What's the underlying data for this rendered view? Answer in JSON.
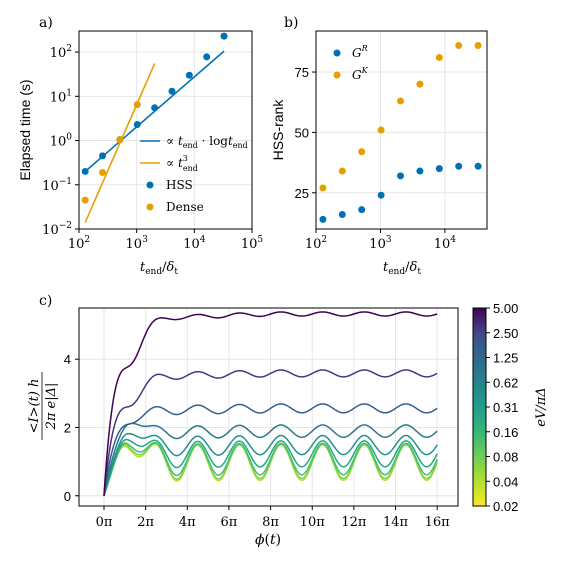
{
  "chart_data": [
    {
      "id": "a",
      "panel_label": "a)",
      "type": "scatter",
      "ylabel": "Elapsed time (s)",
      "xlabel": "t_end/δ_t",
      "x_scale": "log",
      "y_scale": "log",
      "xlim": [
        100,
        100000
      ],
      "ylim": [
        0.01,
        300
      ],
      "x_ticks": [
        {
          "v": 100,
          "b": "10",
          "e": "2"
        },
        {
          "v": 1000,
          "b": "10",
          "e": "3"
        },
        {
          "v": 10000,
          "b": "10",
          "e": "4"
        },
        {
          "v": 100000,
          "b": "10",
          "e": "5"
        }
      ],
      "y_ticks": [
        {
          "v": 0.01,
          "b": "10",
          "e": "−2"
        },
        {
          "v": 0.1,
          "b": "10",
          "e": "−1"
        },
        {
          "v": 1,
          "b": "10",
          "e": "0"
        },
        {
          "v": 10,
          "b": "10",
          "e": "1"
        },
        {
          "v": 100,
          "b": "10",
          "e": "2"
        }
      ],
      "legend_position": "bottom-right",
      "series": [
        {
          "name": "∝ t_end · log t_end",
          "kind": "line",
          "color": "#0072b2",
          "x": [
            128,
            32768
          ],
          "y": [
            0.2,
            105
          ]
        },
        {
          "name": "∝ t_end³",
          "kind": "line",
          "color": "#e69f00",
          "x": [
            128,
            2048
          ],
          "y": [
            0.014,
            55
          ]
        },
        {
          "name": "HSS",
          "kind": "scatter",
          "color": "#0072b2",
          "x": [
            128,
            256,
            512,
            1024,
            2048,
            4096,
            8192,
            16384,
            32768
          ],
          "y": [
            0.2,
            0.45,
            1.05,
            2.3,
            5.5,
            13,
            30,
            78,
            230
          ]
        },
        {
          "name": "Dense",
          "kind": "scatter",
          "color": "#e69f00",
          "x": [
            128,
            256,
            512,
            1024
          ],
          "y": [
            0.045,
            0.19,
            1.05,
            6.5
          ]
        }
      ]
    },
    {
      "id": "b",
      "panel_label": "b)",
      "type": "scatter",
      "ylabel": "HSS-rank",
      "xlabel": "t_end/δ_t",
      "x_scale": "log",
      "xlim": [
        100,
        45000
      ],
      "ylim": [
        10,
        92
      ],
      "x_ticks": [
        {
          "v": 100,
          "b": "10",
          "e": "2"
        },
        {
          "v": 1000,
          "b": "10",
          "e": "3"
        },
        {
          "v": 10000,
          "b": "10",
          "e": "4"
        }
      ],
      "y_ticks": [
        25,
        50,
        75
      ],
      "legend_position": "top-left",
      "series": [
        {
          "name": "G^R",
          "color": "#0072b2",
          "x": [
            128,
            256,
            512,
            1024,
            2048,
            4096,
            8192,
            16384,
            32768
          ],
          "y": [
            14,
            16,
            18,
            24,
            32,
            34,
            35,
            36,
            36
          ]
        },
        {
          "name": "G^K",
          "color": "#e69f00",
          "x": [
            128,
            256,
            512,
            1024,
            2048,
            4096,
            8192,
            16384,
            32768
          ],
          "y": [
            27,
            34,
            42,
            51,
            63,
            70,
            81,
            86,
            86
          ]
        }
      ]
    },
    {
      "id": "c",
      "panel_label": "c)",
      "type": "line",
      "ylabel_top": "<I>(t) h",
      "ylabel_bottom": "2π e|Δ|",
      "xlabel": "ϕ(t)",
      "xlim_pi": [
        -1.2,
        17
      ],
      "ylim": [
        -0.3,
        5.5
      ],
      "x_ticks": [
        "0π",
        "2π",
        "4π",
        "6π",
        "8π",
        "10π",
        "12π",
        "14π",
        "16π"
      ],
      "y_ticks": [
        0,
        2,
        4
      ],
      "colorbar": {
        "label": "eV/πΔ",
        "ticks": [
          "5.00",
          "2.50",
          "1.25",
          "0.62",
          "0.31",
          "0.16",
          "0.08",
          "0.04",
          "0.02"
        ]
      },
      "series": [
        {
          "eV_over_pi_Delta": 5.0,
          "color": "#440154",
          "plateau": 5.2,
          "peak": 4.3,
          "amplitude": 0.06
        },
        {
          "eV_over_pi_Delta": 2.5,
          "color": "#453680",
          "plateau": 3.5,
          "peak": 3.0,
          "amplitude": 0.1
        },
        {
          "eV_over_pi_Delta": 1.25,
          "color": "#355f8d",
          "plateau": 2.5,
          "peak": 2.45,
          "amplitude": 0.13
        },
        {
          "eV_over_pi_Delta": 0.62,
          "color": "#2a788e",
          "plateau": 1.85,
          "peak": 2.5,
          "amplitude": 0.18
        },
        {
          "eV_over_pi_Delta": 0.31,
          "color": "#21918c",
          "plateau": 1.45,
          "peak": 2.25,
          "amplitude": 0.28
        },
        {
          "eV_over_pi_Delta": 0.16,
          "color": "#22a884",
          "plateau": 1.2,
          "peak": 2.1,
          "amplitude": 0.38
        },
        {
          "eV_over_pi_Delta": 0.08,
          "color": "#44bf70",
          "plateau": 1.05,
          "peak": 2.0,
          "amplitude": 0.46
        },
        {
          "eV_over_pi_Delta": 0.04,
          "color": "#7ad151",
          "plateau": 0.98,
          "peak": 1.95,
          "amplitude": 0.5
        },
        {
          "eV_over_pi_Delta": 0.02,
          "color": "#bddf26",
          "plateau": 0.95,
          "peak": 1.9,
          "amplitude": 0.52
        }
      ]
    }
  ]
}
